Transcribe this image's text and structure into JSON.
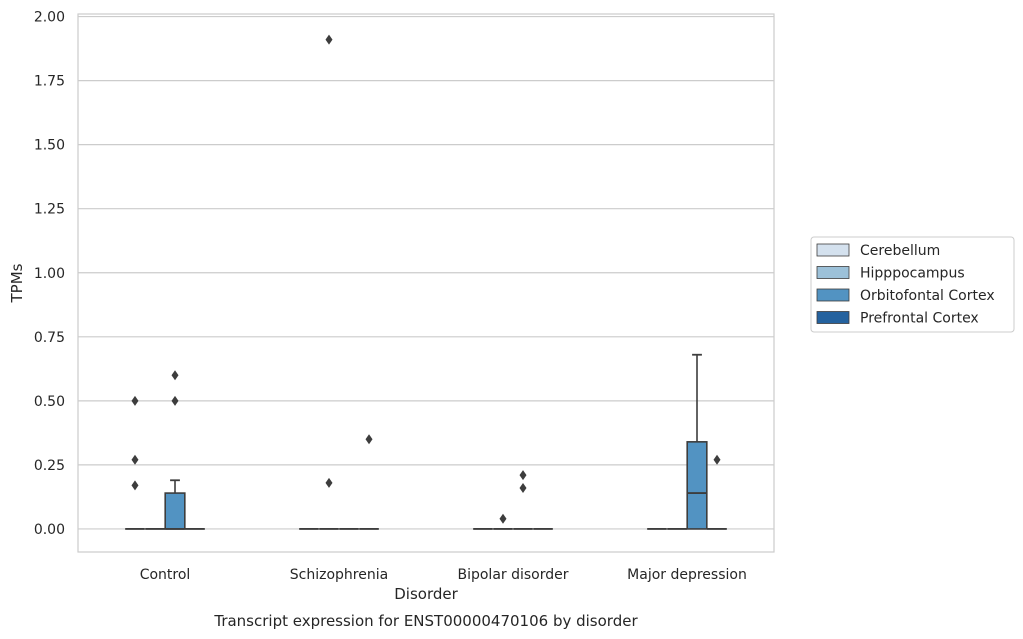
{
  "chart_data": {
    "type": "box",
    "title": "",
    "xlabel": "Disorder",
    "ylabel": "TPMs",
    "caption": "Transcript expression for ENST00000470106 by disorder",
    "categories": [
      "Control",
      "Schizophrenia",
      "Bipolar disorder",
      "Major depression"
    ],
    "hues": [
      "Cerebellum",
      "Hipppocampus",
      "Orbitofontal Cortex",
      "Prefrontal Cortex"
    ],
    "hue_colors": [
      "#d4e1ee",
      "#9cc1d9",
      "#5293c2",
      "#24629f"
    ],
    "ylim": [
      -0.09,
      2.01
    ],
    "yticks": [
      0.0,
      0.25,
      0.5,
      0.75,
      1.0,
      1.25,
      1.5,
      1.75,
      2.0
    ],
    "grid": true,
    "legend_position": "right",
    "series": [
      {
        "name": "Cerebellum",
        "boxes": [
          {
            "q1": 0,
            "median": 0,
            "q3": 0,
            "whislo": 0,
            "whishi": 0,
            "fliers": [
              0.17,
              0.27,
              0.5
            ]
          },
          {
            "q1": 0,
            "median": 0,
            "q3": 0,
            "whislo": 0,
            "whishi": 0,
            "fliers": []
          },
          {
            "q1": 0,
            "median": 0,
            "q3": 0,
            "whislo": 0,
            "whishi": 0,
            "fliers": []
          },
          {
            "q1": 0,
            "median": 0,
            "q3": 0,
            "whislo": 0,
            "whishi": 0,
            "fliers": []
          }
        ]
      },
      {
        "name": "Hipppocampus",
        "boxes": [
          {
            "q1": 0,
            "median": 0,
            "q3": 0,
            "whislo": 0,
            "whishi": 0,
            "fliers": []
          },
          {
            "q1": 0,
            "median": 0,
            "q3": 0,
            "whislo": 0,
            "whishi": 0,
            "fliers": [
              1.91,
              0.18
            ]
          },
          {
            "q1": 0,
            "median": 0,
            "q3": 0,
            "whislo": 0,
            "whishi": 0,
            "fliers": [
              0.04
            ]
          },
          {
            "q1": 0,
            "median": 0,
            "q3": 0,
            "whislo": 0,
            "whishi": 0,
            "fliers": []
          }
        ]
      },
      {
        "name": "Orbitofontal Cortex",
        "boxes": [
          {
            "q1": 0,
            "median": 0,
            "q3": 0.14,
            "whislo": 0,
            "whishi": 0.19,
            "fliers": [
              0.5,
              0.6
            ]
          },
          {
            "q1": 0,
            "median": 0,
            "q3": 0,
            "whislo": 0,
            "whishi": 0,
            "fliers": []
          },
          {
            "q1": 0,
            "median": 0,
            "q3": 0,
            "whislo": 0,
            "whishi": 0,
            "fliers": [
              0.16,
              0.21
            ]
          },
          {
            "q1": 0,
            "median": 0.14,
            "q3": 0.34,
            "whislo": 0,
            "whishi": 0.68,
            "fliers": []
          }
        ]
      },
      {
        "name": "Prefrontal Cortex",
        "boxes": [
          {
            "q1": 0,
            "median": 0,
            "q3": 0,
            "whislo": 0,
            "whishi": 0,
            "fliers": []
          },
          {
            "q1": 0,
            "median": 0,
            "q3": 0,
            "whislo": 0,
            "whishi": 0,
            "fliers": [
              0.35
            ]
          },
          {
            "q1": 0,
            "median": 0,
            "q3": 0,
            "whislo": 0,
            "whishi": 0,
            "fliers": []
          },
          {
            "q1": 0,
            "median": 0,
            "q3": 0,
            "whislo": 0,
            "whishi": 0,
            "fliers": [
              0.27
            ]
          }
        ]
      }
    ]
  }
}
